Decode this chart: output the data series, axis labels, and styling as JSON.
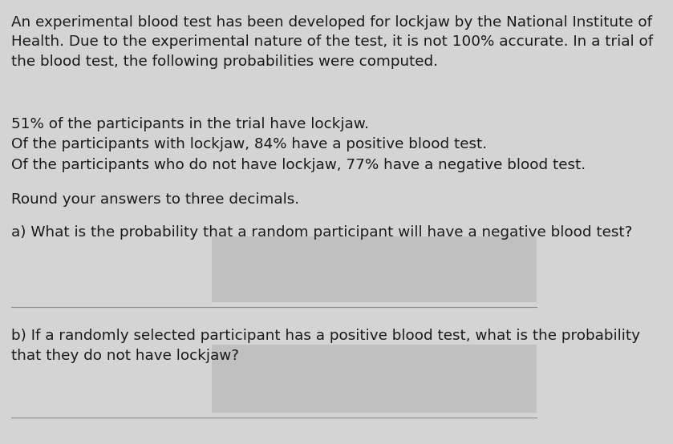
{
  "bg_color": "#d4d4d4",
  "text_color": "#1a1a1a",
  "font_size_body": 13.2,
  "paragraph1": "An experimental blood test has been developed for lockjaw by the National Institute of\nHealth. Due to the experimental nature of the test, it is not 100% accurate. In a trial of\nthe blood test, the following probabilities were computed.",
  "bullet1": "51% of the participants in the trial have lockjaw.",
  "bullet2": "Of the participants with lockjaw, 84% have a positive blood test.",
  "bullet3": "Of the participants who do not have lockjaw, 77% have a negative blood test.",
  "round_text": "Round your answers to three decimals.",
  "qa_text": "a) What is the probability that a random participant will have a negative blood test?",
  "qb_text": "b) If a randomly selected participant has a positive blood test, what is the probability\nthat they do not have lockjaw?",
  "answer_box_color": "#c0c0c0",
  "line_color": "#888888",
  "line_width": 0.8
}
